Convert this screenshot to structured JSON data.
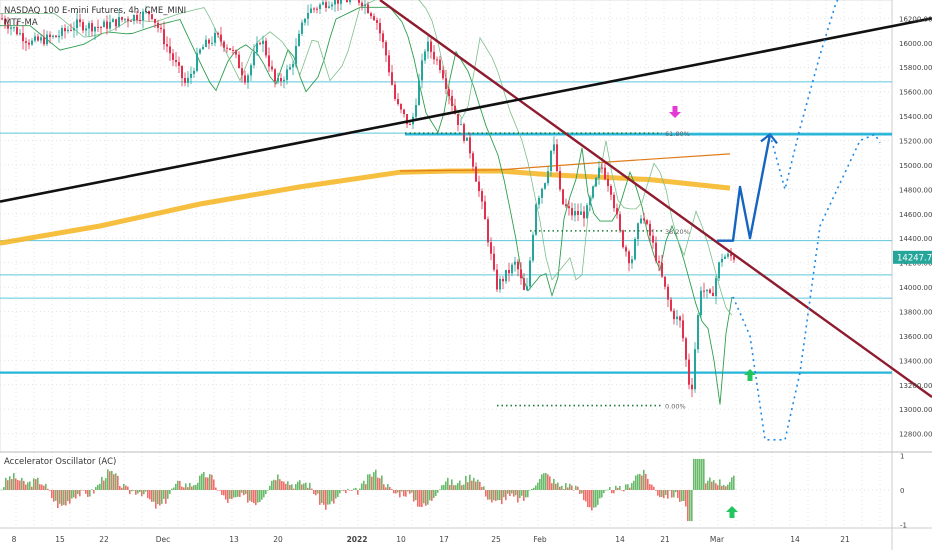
{
  "header": {
    "symbol_line": "NASDAQ 100 E-mini Futures, 4h, CME_MINI",
    "indicator_label": "MTF-MA"
  },
  "price_axis": {
    "ticks": [
      "16200.00",
      "16000.00",
      "15800.00",
      "15600.00",
      "15400.00",
      "15200.00",
      "15000.00",
      "14800.00",
      "14600.00",
      "14400.00",
      "14200.00",
      "14000.00",
      "13800.00",
      "13600.00",
      "13400.00",
      "13200.00",
      "13000.00",
      "12800.00"
    ],
    "current_price_label": "14247.75",
    "current_price_color": "#26a69a"
  },
  "osc_axis": {
    "ticks": [
      "1",
      "0",
      "-1"
    ]
  },
  "time_axis": {
    "ticks": [
      "8",
      "15",
      "22",
      "Dec",
      "13",
      "20",
      "2022",
      "10",
      "17",
      "25",
      "Feb",
      "14",
      "21",
      "Mar",
      "14",
      "21"
    ]
  },
  "oscillator": {
    "title": "Accelerator Oscillator (AC)"
  },
  "annotations": {
    "fib_top": "61.80%",
    "fib_mid": "38.20%",
    "fib_bottom": "0.00%"
  },
  "colors": {
    "candle_up": "#26a69a",
    "candle_down": "#e2314e",
    "horizontal_line": "#5ec6db",
    "horizontal_line_thick": "#26b6d8",
    "projection": "#1565c0",
    "dotted_projection": "#1e88e5",
    "downtrend_line": "#8e1b2e",
    "long_trend_line": "#111111",
    "ma_slow": "#f5b82a",
    "ma_mid": "#e07b1a",
    "fib_dots": "#1b7a3a",
    "arrow_up": "#22c55e",
    "arrow_down": "#e33ad6"
  },
  "chart_data": {
    "type": "candlestick",
    "title": "NASDAQ 100 E-mini Futures, 4h, CME_MINI",
    "y_range": [
      12650,
      16350
    ],
    "close_path": [
      [
        0,
        16200
      ],
      [
        30,
        16000
      ],
      [
        55,
        16050
      ],
      [
        75,
        16150
      ],
      [
        100,
        16130
      ],
      [
        125,
        16200
      ],
      [
        150,
        16250
      ],
      [
        170,
        15900
      ],
      [
        185,
        15650
      ],
      [
        200,
        15950
      ],
      [
        215,
        16050
      ],
      [
        230,
        15950
      ],
      [
        245,
        15700
      ],
      [
        260,
        16050
      ],
      [
        275,
        15650
      ],
      [
        290,
        15800
      ],
      [
        305,
        16250
      ],
      [
        330,
        16350
      ],
      [
        360,
        16350
      ],
      [
        375,
        16200
      ],
      [
        385,
        15900
      ],
      [
        395,
        15500
      ],
      [
        410,
        15300
      ],
      [
        425,
        16000
      ],
      [
        440,
        15800
      ],
      [
        455,
        15400
      ],
      [
        470,
        15100
      ],
      [
        485,
        14500
      ],
      [
        495,
        14000
      ],
      [
        505,
        14100
      ],
      [
        515,
        14200
      ],
      [
        525,
        13900
      ],
      [
        535,
        14700
      ],
      [
        545,
        14900
      ],
      [
        552,
        15200
      ],
      [
        560,
        14700
      ],
      [
        570,
        14600
      ],
      [
        585,
        14600
      ],
      [
        600,
        15000
      ],
      [
        610,
        14800
      ],
      [
        620,
        14400
      ],
      [
        630,
        14200
      ],
      [
        640,
        14600
      ],
      [
        650,
        14400
      ],
      [
        660,
        14100
      ],
      [
        670,
        13800
      ],
      [
        680,
        13700
      ],
      [
        690,
        13100
      ],
      [
        695,
        13600
      ],
      [
        700,
        14000
      ],
      [
        710,
        13900
      ],
      [
        720,
        14250
      ],
      [
        733,
        14248
      ]
    ],
    "horizontal_levels": [
      15680,
      15260,
      15250,
      14380,
      14100,
      13910,
      13300
    ],
    "fib_levels": [
      {
        "label": "61.80%",
        "price": 15260
      },
      {
        "label": "38.20%",
        "price": 14460
      },
      {
        "label": "0.00%",
        "price": 13030
      }
    ],
    "ma_slow_path": [
      [
        0,
        14360
      ],
      [
        100,
        14500
      ],
      [
        200,
        14680
      ],
      [
        300,
        14820
      ],
      [
        400,
        14940
      ],
      [
        450,
        14950
      ],
      [
        500,
        14950
      ],
      [
        550,
        14920
      ],
      [
        650,
        14880
      ],
      [
        730,
        14810
      ]
    ],
    "ma_mid_path": [
      [
        400,
        14950
      ],
      [
        500,
        14960
      ],
      [
        600,
        15020
      ],
      [
        730,
        15090
      ]
    ],
    "downtrend_line": {
      "from": [
        380,
        16350
      ],
      "to": [
        932,
        13100
      ]
    },
    "long_trend_line": {
      "from": [
        0,
        14700
      ],
      "to": [
        932,
        16200
      ]
    },
    "projection": [
      [
        717,
        14380
      ],
      [
        733,
        14380
      ],
      [
        740,
        14820
      ],
      [
        750,
        14400
      ],
      [
        770,
        15250
      ]
    ],
    "dotted_projection_a": [
      [
        733,
        13920
      ],
      [
        750,
        13600
      ],
      [
        765,
        12750
      ],
      [
        785,
        12750
      ],
      [
        800,
        13300
      ],
      [
        820,
        14500
      ],
      [
        860,
        15200
      ],
      [
        875,
        15250
      ],
      [
        880,
        15180
      ]
    ],
    "dotted_projection_b": [
      [
        770,
        15250
      ],
      [
        785,
        14800
      ],
      [
        800,
        15300
      ],
      [
        820,
        15900
      ],
      [
        835,
        16300
      ],
      [
        845,
        16500
      ]
    ],
    "oscillator_range": [
      -1.1,
      1.1
    ]
  }
}
